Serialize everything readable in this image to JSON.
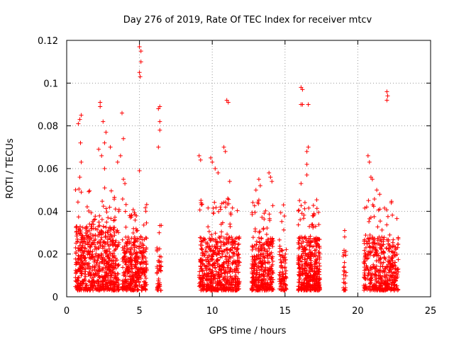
{
  "chart_data": {
    "type": "scatter",
    "title": "Day 276 of 2019, Rate Of TEC Index for receiver mtcv",
    "xlabel": "GPS time / hours",
    "ylabel": "ROTI / TECUs",
    "xlim": [
      0,
      25
    ],
    "ylim": [
      0,
      0.12
    ],
    "xticks": [
      0,
      5,
      10,
      15,
      20,
      25
    ],
    "xtick_labels": [
      "0",
      "5",
      "10",
      "15",
      "20",
      "25"
    ],
    "yticks": [
      0,
      0.02,
      0.04,
      0.06,
      0.08,
      0.1,
      0.12
    ],
    "ytick_labels": [
      "0",
      "0.02",
      "0.04",
      "0.06",
      "0.08",
      "0.1",
      "0.12"
    ],
    "grid": true,
    "marker": "+",
    "color": "#ff0000",
    "series": [
      {
        "name": "ROTI",
        "clusters": [
          {
            "x_start": 0.6,
            "x_end": 3.6,
            "typical_max": 0.03,
            "count": 700
          },
          {
            "x_start": 3.8,
            "x_end": 5.5,
            "typical_max": 0.025,
            "count": 380
          },
          {
            "x_start": 6.2,
            "x_end": 6.5,
            "typical_max": 0.02,
            "count": 45
          },
          {
            "x_start": 9.1,
            "x_end": 11.9,
            "typical_max": 0.025,
            "count": 600
          },
          {
            "x_start": 12.7,
            "x_end": 14.2,
            "typical_max": 0.025,
            "count": 360
          },
          {
            "x_start": 14.6,
            "x_end": 15.1,
            "typical_max": 0.02,
            "count": 90
          },
          {
            "x_start": 15.9,
            "x_end": 17.4,
            "typical_max": 0.025,
            "count": 420
          },
          {
            "x_start": 19.0,
            "x_end": 19.2,
            "typical_max": 0.02,
            "count": 25
          },
          {
            "x_start": 20.4,
            "x_end": 22.8,
            "typical_max": 0.025,
            "count": 450
          }
        ],
        "outliers": [
          {
            "x": 0.8,
            "y": 0.081
          },
          {
            "x": 0.9,
            "y": 0.083
          },
          {
            "x": 1.0,
            "y": 0.085
          },
          {
            "x": 0.95,
            "y": 0.072
          },
          {
            "x": 1.0,
            "y": 0.063
          },
          {
            "x": 0.9,
            "y": 0.056
          },
          {
            "x": 2.3,
            "y": 0.091
          },
          {
            "x": 2.3,
            "y": 0.089
          },
          {
            "x": 2.5,
            "y": 0.082
          },
          {
            "x": 2.7,
            "y": 0.077
          },
          {
            "x": 2.6,
            "y": 0.072
          },
          {
            "x": 2.2,
            "y": 0.069
          },
          {
            "x": 2.4,
            "y": 0.066
          },
          {
            "x": 2.6,
            "y": 0.06
          },
          {
            "x": 3.0,
            "y": 0.07
          },
          {
            "x": 3.5,
            "y": 0.063
          },
          {
            "x": 3.8,
            "y": 0.086
          },
          {
            "x": 3.9,
            "y": 0.074
          },
          {
            "x": 3.7,
            "y": 0.066
          },
          {
            "x": 3.9,
            "y": 0.055
          },
          {
            "x": 4.0,
            "y": 0.053
          },
          {
            "x": 5.0,
            "y": 0.117
          },
          {
            "x": 5.1,
            "y": 0.115
          },
          {
            "x": 5.1,
            "y": 0.11
          },
          {
            "x": 5.0,
            "y": 0.105
          },
          {
            "x": 5.05,
            "y": 0.103
          },
          {
            "x": 5.0,
            "y": 0.059
          },
          {
            "x": 6.4,
            "y": 0.089
          },
          {
            "x": 6.3,
            "y": 0.088
          },
          {
            "x": 6.4,
            "y": 0.082
          },
          {
            "x": 6.3,
            "y": 0.07
          },
          {
            "x": 6.4,
            "y": 0.078
          },
          {
            "x": 9.1,
            "y": 0.066
          },
          {
            "x": 9.2,
            "y": 0.064
          },
          {
            "x": 9.9,
            "y": 0.065
          },
          {
            "x": 10.0,
            "y": 0.063
          },
          {
            "x": 10.2,
            "y": 0.06
          },
          {
            "x": 10.4,
            "y": 0.058
          },
          {
            "x": 11.0,
            "y": 0.092
          },
          {
            "x": 11.1,
            "y": 0.091
          },
          {
            "x": 10.8,
            "y": 0.07
          },
          {
            "x": 10.9,
            "y": 0.068
          },
          {
            "x": 11.2,
            "y": 0.054
          },
          {
            "x": 13.2,
            "y": 0.055
          },
          {
            "x": 13.3,
            "y": 0.052
          },
          {
            "x": 13.0,
            "y": 0.05
          },
          {
            "x": 13.9,
            "y": 0.058
          },
          {
            "x": 14.0,
            "y": 0.056
          },
          {
            "x": 14.1,
            "y": 0.054
          },
          {
            "x": 14.9,
            "y": 0.043
          },
          {
            "x": 16.1,
            "y": 0.098
          },
          {
            "x": 16.2,
            "y": 0.097
          },
          {
            "x": 16.1,
            "y": 0.09
          },
          {
            "x": 16.2,
            "y": 0.09
          },
          {
            "x": 16.6,
            "y": 0.09
          },
          {
            "x": 16.6,
            "y": 0.07
          },
          {
            "x": 16.5,
            "y": 0.068
          },
          {
            "x": 16.5,
            "y": 0.062
          },
          {
            "x": 16.5,
            "y": 0.057
          },
          {
            "x": 16.1,
            "y": 0.053
          },
          {
            "x": 19.1,
            "y": 0.031
          },
          {
            "x": 19.1,
            "y": 0.028
          },
          {
            "x": 20.7,
            "y": 0.066
          },
          {
            "x": 20.8,
            "y": 0.063
          },
          {
            "x": 20.9,
            "y": 0.056
          },
          {
            "x": 21.0,
            "y": 0.055
          },
          {
            "x": 21.3,
            "y": 0.05
          },
          {
            "x": 21.5,
            "y": 0.048
          },
          {
            "x": 22.0,
            "y": 0.096
          },
          {
            "x": 22.05,
            "y": 0.094
          },
          {
            "x": 22.0,
            "y": 0.092
          },
          {
            "x": 22.3,
            "y": 0.044
          }
        ]
      }
    ]
  }
}
